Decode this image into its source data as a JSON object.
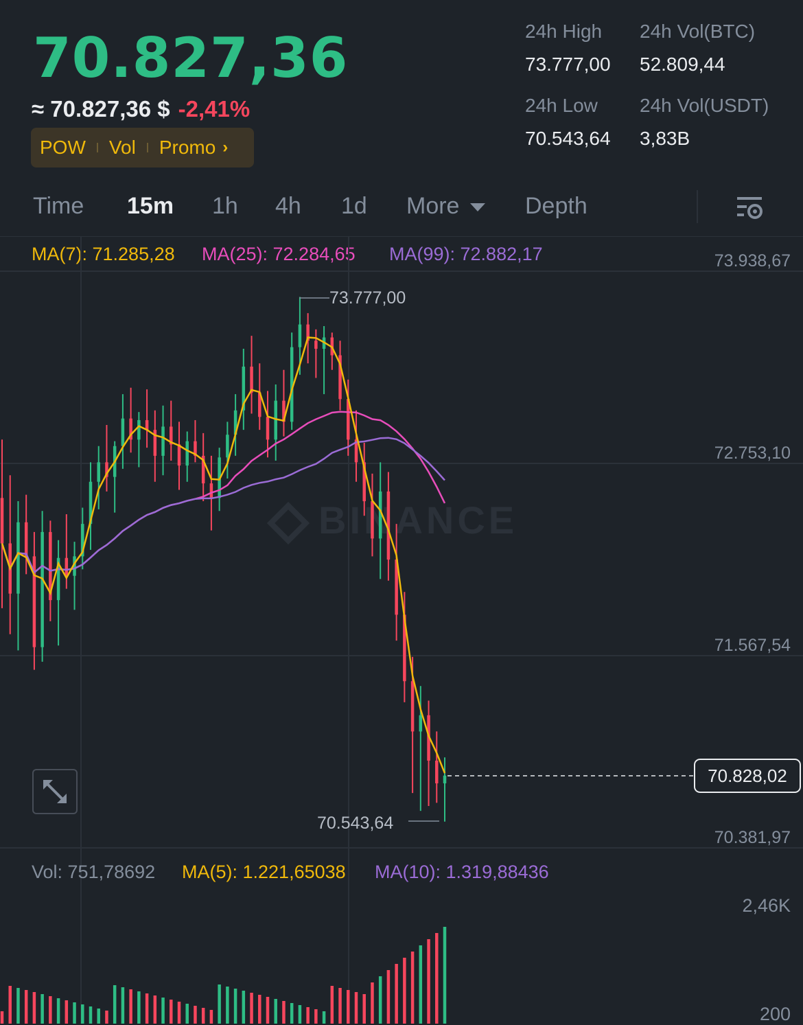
{
  "ticker": {
    "last_price": "70.827,36",
    "approx_usd": "≈ 70.827,36 $",
    "change_pct": "-2,41%",
    "tags": [
      "POW",
      "Vol",
      "Promo"
    ],
    "stats": {
      "high_label": "24h High",
      "high_value": "73.777,00",
      "vol_btc_label": "24h Vol(BTC)",
      "vol_btc_value": "52.809,44",
      "low_label": "24h Low",
      "low_value": "70.543,64",
      "vol_usdt_label": "24h Vol(USDT)",
      "vol_usdt_value": "3,83B"
    }
  },
  "tabs": [
    {
      "label": "Time",
      "active": false
    },
    {
      "label": "15m",
      "active": true
    },
    {
      "label": "1h",
      "active": false
    },
    {
      "label": "4h",
      "active": false
    },
    {
      "label": "1d",
      "active": false
    },
    {
      "label": "More",
      "active": false
    },
    {
      "label": "Depth",
      "active": false
    }
  ],
  "indicators": {
    "ma7": "MA(7): 71.285,28",
    "ma25": "MA(25): 72.284,65",
    "ma99": "MA(99): 72.882,17",
    "vol": "Vol: 751,78692",
    "vol_ma5": "MA(5): 1.221,65038",
    "vol_ma10": "MA(10): 1.319,88436"
  },
  "watermark": "BINANCE",
  "colors": {
    "up": "#2ebd85",
    "down": "#f6465d",
    "ma7": "#f0b90b",
    "ma25": "#e84dbb",
    "ma99": "#9b6cd6",
    "accent": "#f0b90b"
  },
  "chart_data": {
    "type": "candlestick",
    "interval": "15m",
    "y_ticks": [
      "73.938,67",
      "72.753,10",
      "71.567,54",
      "70.381,97"
    ],
    "ylim": [
      70381.97,
      73938.67
    ],
    "high_marker": "73.777,00",
    "low_marker": "70.543,64",
    "current_price_label": "70.828,02",
    "candles": [
      [
        72540,
        72900,
        71860,
        72260
      ],
      [
        72260,
        72680,
        71700,
        71950
      ],
      [
        71950,
        72520,
        71600,
        72390
      ],
      [
        72390,
        72560,
        72070,
        72180
      ],
      [
        72180,
        72330,
        71480,
        71620
      ],
      [
        71620,
        72460,
        71530,
        72330
      ],
      [
        72330,
        72400,
        71780,
        71910
      ],
      [
        71910,
        72280,
        71630,
        72170
      ],
      [
        72170,
        72440,
        71980,
        72060
      ],
      [
        72060,
        72270,
        71850,
        72180
      ],
      [
        72180,
        72480,
        72100,
        72380
      ],
      [
        72380,
        72760,
        72220,
        72640
      ],
      [
        72640,
        72860,
        72470,
        72760
      ],
      [
        72760,
        72990,
        72580,
        72670
      ],
      [
        72670,
        72890,
        72450,
        72860
      ],
      [
        72860,
        73180,
        72720,
        73030
      ],
      [
        73030,
        73220,
        72820,
        72900
      ],
      [
        72900,
        73070,
        72730,
        73020
      ],
      [
        73020,
        73210,
        72850,
        72960
      ],
      [
        72960,
        73080,
        72640,
        72800
      ],
      [
        72800,
        73110,
        72680,
        72980
      ],
      [
        72980,
        73140,
        72770,
        72870
      ],
      [
        72870,
        73010,
        72590,
        72740
      ],
      [
        72740,
        72950,
        72640,
        72890
      ],
      [
        72890,
        73020,
        72760,
        72800
      ],
      [
        72800,
        72940,
        72520,
        72630
      ],
      [
        72630,
        72800,
        72340,
        72540
      ],
      [
        72540,
        72850,
        72460,
        72790
      ],
      [
        72790,
        73010,
        72660,
        72930
      ],
      [
        72930,
        73180,
        72800,
        73080
      ],
      [
        73080,
        73460,
        72960,
        73350
      ],
      [
        73350,
        73540,
        73060,
        73190
      ],
      [
        73190,
        73370,
        72960,
        73040
      ],
      [
        73040,
        73200,
        72790,
        72900
      ],
      [
        72900,
        73240,
        72770,
        73140
      ],
      [
        73140,
        73330,
        72920,
        73010
      ],
      [
        73010,
        73560,
        72960,
        73470
      ],
      [
        73470,
        73780,
        73300,
        73610
      ],
      [
        73610,
        73680,
        73370,
        73510
      ],
      [
        73510,
        73580,
        73280,
        73460
      ],
      [
        73460,
        73600,
        73180,
        73530
      ],
      [
        73530,
        73560,
        73330,
        73420
      ],
      [
        73420,
        73510,
        73080,
        73150
      ],
      [
        73150,
        73270,
        72800,
        72900
      ],
      [
        72900,
        73080,
        72640,
        72760
      ],
      [
        72760,
        72880,
        72430,
        72520
      ],
      [
        72520,
        72690,
        72180,
        72290
      ],
      [
        72290,
        72760,
        72040,
        72580
      ],
      [
        72580,
        72700,
        72030,
        72160
      ],
      [
        72160,
        72380,
        71660,
        71820
      ],
      [
        71820,
        71960,
        71280,
        71410
      ],
      [
        71410,
        71560,
        70720,
        71100
      ],
      [
        71100,
        71380,
        70610,
        71200
      ],
      [
        71200,
        71290,
        70640,
        70920
      ],
      [
        70920,
        71100,
        70660,
        70780
      ],
      [
        70780,
        70940,
        70544,
        70828
      ]
    ]
  }
}
